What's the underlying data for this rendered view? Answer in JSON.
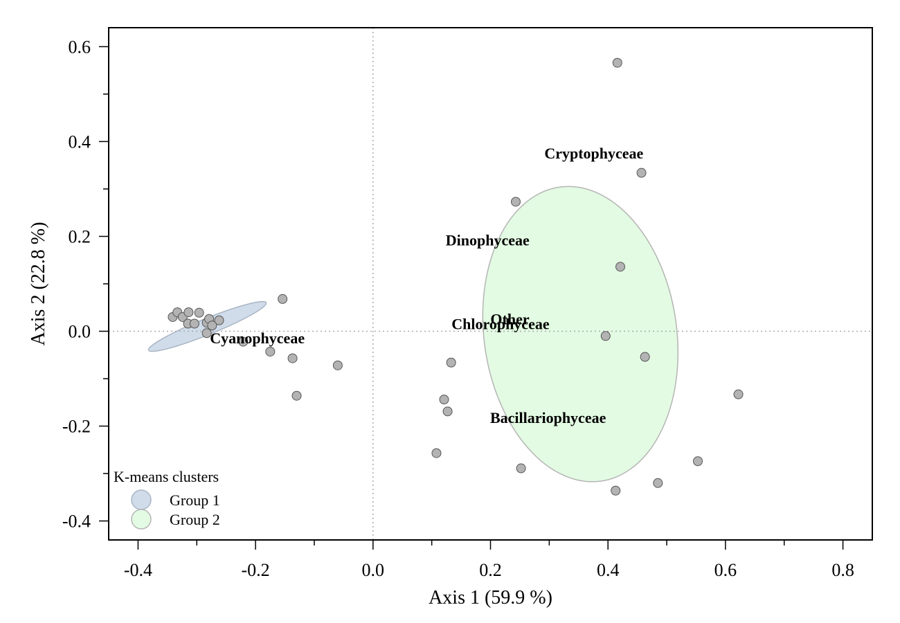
{
  "chart_data": {
    "type": "scatter",
    "xlabel": "Axis 1 (59.9 %)",
    "ylabel": "Axis 2 (22.8 %)",
    "xlim": [
      -0.45,
      0.85
    ],
    "ylim": [
      -0.44,
      0.64
    ],
    "xticks": [
      -0.4,
      -0.2,
      0.0,
      0.2,
      0.4,
      0.6,
      0.8
    ],
    "xtick_labels": [
      "-0.4",
      "-0.2",
      "0.0",
      "0.2",
      "0.4",
      "0.6",
      "0.8"
    ],
    "yticks": [
      -0.4,
      -0.2,
      0.0,
      0.2,
      0.4,
      0.6
    ],
    "ytick_labels": [
      "-0.4",
      "-0.2",
      "0.0",
      "0.2",
      "0.4",
      "0.6"
    ],
    "minor_ticks": true,
    "reference_lines": {
      "x": 0,
      "y": 0,
      "style": "dotted"
    },
    "point_color": "#b3b3b3",
    "points": [
      {
        "x": 0.416,
        "y": 0.566
      },
      {
        "x": 0.457,
        "y": 0.334
      },
      {
        "x": 0.243,
        "y": 0.273
      },
      {
        "x": 0.421,
        "y": 0.136
      },
      {
        "x": -0.154,
        "y": 0.068
      },
      {
        "x": -0.341,
        "y": 0.03
      },
      {
        "x": -0.333,
        "y": 0.04
      },
      {
        "x": -0.324,
        "y": 0.03
      },
      {
        "x": -0.314,
        "y": 0.04
      },
      {
        "x": -0.296,
        "y": 0.039
      },
      {
        "x": -0.315,
        "y": 0.016
      },
      {
        "x": -0.304,
        "y": 0.016
      },
      {
        "x": -0.283,
        "y": 0.018
      },
      {
        "x": -0.279,
        "y": 0.026
      },
      {
        "x": -0.262,
        "y": 0.023
      },
      {
        "x": -0.274,
        "y": 0.012
      },
      {
        "x": -0.283,
        "y": -0.004
      },
      {
        "x": -0.221,
        "y": -0.022
      },
      {
        "x": -0.175,
        "y": -0.043
      },
      {
        "x": -0.137,
        "y": -0.057
      },
      {
        "x": -0.06,
        "y": -0.072
      },
      {
        "x": -0.13,
        "y": -0.136
      },
      {
        "x": 0.396,
        "y": -0.01
      },
      {
        "x": 0.463,
        "y": -0.054
      },
      {
        "x": 0.133,
        "y": -0.066
      },
      {
        "x": 0.121,
        "y": -0.144
      },
      {
        "x": 0.127,
        "y": -0.169
      },
      {
        "x": 0.622,
        "y": -0.133
      },
      {
        "x": 0.108,
        "y": -0.257
      },
      {
        "x": 0.252,
        "y": -0.289
      },
      {
        "x": 0.553,
        "y": -0.274
      },
      {
        "x": 0.485,
        "y": -0.32
      },
      {
        "x": 0.413,
        "y": -0.336
      }
    ],
    "species_labels": [
      {
        "name": "Cryptophyceae",
        "x": 0.376,
        "y": 0.376
      },
      {
        "name": "Dinophyceae",
        "x": 0.195,
        "y": 0.193
      },
      {
        "name": "Other",
        "x": 0.233,
        "y": 0.026
      },
      {
        "name": "Chlorophyceae",
        "x": 0.217,
        "y": 0.016
      },
      {
        "name": "Cyanophyceae",
        "x": -0.197,
        "y": -0.014
      },
      {
        "name": "Bacillariophyceae",
        "x": 0.298,
        "y": -0.182
      }
    ],
    "clusters": [
      {
        "name": "Group 1",
        "fill": "#d0dcea",
        "stroke": "#a9b5c4",
        "cx": -0.282,
        "cy": 0.01,
        "rx": 0.108,
        "ry": 0.017,
        "angle_deg": -22
      },
      {
        "name": "Group 2",
        "fill": "#e3fae3",
        "stroke": "#b5b5b5",
        "cx": 0.353,
        "cy": -0.006,
        "rx": 0.164,
        "ry": 0.313,
        "angle_deg": -8
      }
    ],
    "legend": {
      "title": "K-means clusters",
      "position": "bottom-left"
    }
  }
}
